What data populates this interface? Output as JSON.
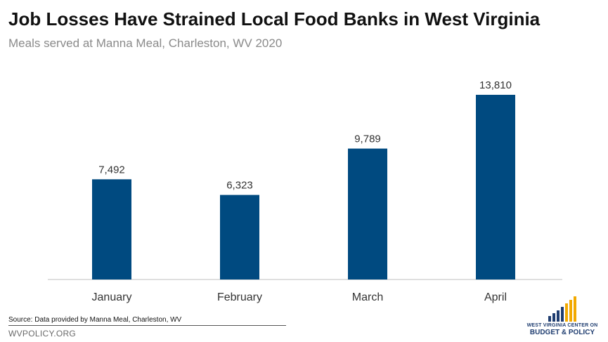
{
  "header": {
    "title": "Job Losses Have Strained Local Food Banks in West Virginia",
    "subtitle": "Meals served at Manna Meal, Charleston, WV 2020"
  },
  "chart_data": {
    "type": "bar",
    "title": "Job Losses Have Strained Local Food Banks in West Virginia",
    "subtitle": "Meals served at Manna Meal, Charleston, WV 2020",
    "categories": [
      "January",
      "February",
      "March",
      "April"
    ],
    "values": [
      7492,
      6323,
      9789,
      13810
    ],
    "value_labels": [
      "7,492",
      "6,323",
      "9,789",
      "13,810"
    ],
    "xlabel": "",
    "ylabel": "",
    "ylim": [
      0,
      15000
    ],
    "grid": false,
    "bar_color": "#004a80",
    "legend": "none"
  },
  "source": {
    "text": "Source: Data provided by Manna Meal, Charleston, WV"
  },
  "footer": {
    "site": "WVPOLICY.ORG"
  },
  "logo": {
    "line1": "WEST VIRGINIA CENTER ON",
    "line2": "BUDGET & POLICY",
    "icon": "bar-chart-logo-icon",
    "colors": [
      "#1f3d70",
      "#f2a900"
    ]
  }
}
